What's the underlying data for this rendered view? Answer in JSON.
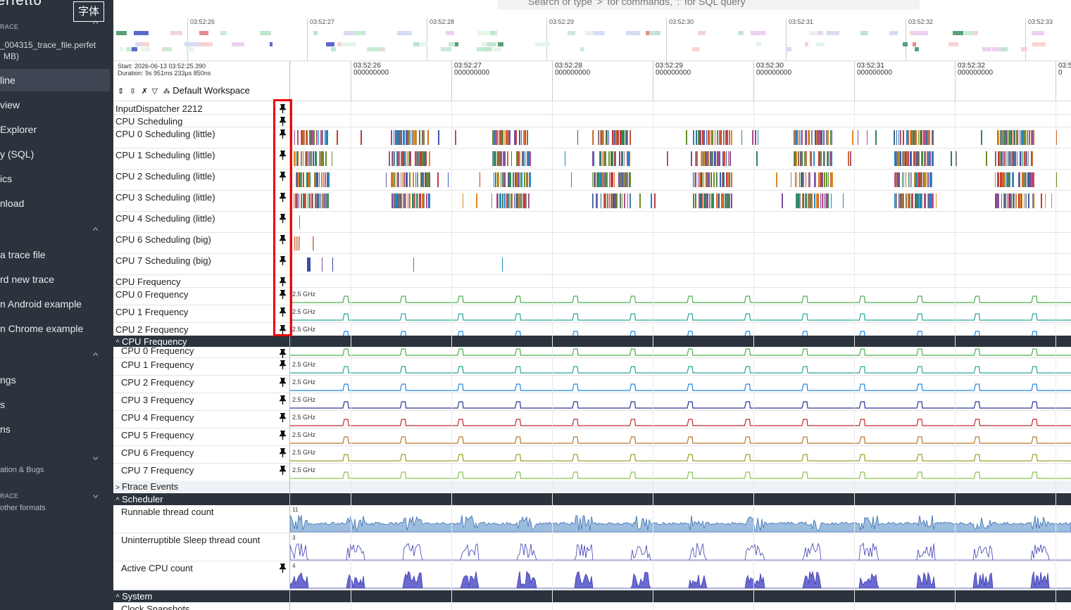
{
  "sidebar": {
    "logo": "erfetto",
    "font_badge": "字体",
    "section1_header": "RACE",
    "trace_name": "_004315_trace_file.perfet",
    "trace_size": "MB)",
    "items": [
      {
        "label": "line"
      },
      {
        "label": "view"
      },
      {
        "label": " Explorer"
      },
      {
        "label": "y (SQL)"
      },
      {
        "label": "ics"
      },
      {
        "label": "nload"
      }
    ],
    "items2": [
      {
        "label": "a trace file"
      },
      {
        "label": "rd new trace"
      },
      {
        "label": "n Android example"
      },
      {
        "label": "n Chrome example"
      }
    ],
    "items3": [
      {
        "label": "ngs"
      },
      {
        "label": "s"
      },
      {
        "label": "ns"
      }
    ],
    "footer1": "ation & Bugs",
    "footer_header": "RACE",
    "footer2": "other formats"
  },
  "search": {
    "text": "Search or type '>' for commands, ':' for SQL query"
  },
  "overview_ticks": [
    "03:52:26",
    "03:52:27",
    "03:52:28",
    "03:52:29",
    "03:52:30",
    "03:52:31",
    "03:52:32",
    "03:52:33"
  ],
  "timeline": {
    "start": "Start: 2026-06-13 03:52:25.390",
    "duration": "Duration: 9s 951ms 233µs 850ns",
    "workspace": "Default Workspace",
    "ticks": [
      {
        "time": "03:52:26",
        "sub": "000000000"
      },
      {
        "time": "03:52:27",
        "sub": "000000000"
      },
      {
        "time": "03:52:28",
        "sub": "000000000"
      },
      {
        "time": "03:52:29",
        "sub": "000000000"
      },
      {
        "time": "03:52:30",
        "sub": "000000000"
      },
      {
        "time": "03:52:31",
        "sub": "000000000"
      },
      {
        "time": "03:52:32",
        "sub": "000000000"
      },
      {
        "time": "03:5",
        "sub": "0"
      }
    ]
  },
  "pinned_tracks": [
    {
      "name": "InputDispatcher 2212"
    },
    {
      "name": "CPU Scheduling"
    },
    {
      "name": "CPU 0 Scheduling (little)"
    },
    {
      "name": "CPU 1 Scheduling (little)"
    },
    {
      "name": "CPU 2 Scheduling (little)"
    },
    {
      "name": "CPU 3 Scheduling (little)"
    },
    {
      "name": "CPU 4 Scheduling (little)"
    },
    {
      "name": "CPU 6 Scheduling (big)"
    },
    {
      "name": "CPU 7 Scheduling (big)"
    },
    {
      "name": "CPU Frequency"
    },
    {
      "name": "CPU 0 Frequency",
      "freq": "2.5 GHz"
    },
    {
      "name": "CPU 1 Frequency",
      "freq": "2.5 GHz"
    },
    {
      "name": "CPU 2 Frequency",
      "freq": "2.5 GHz"
    }
  ],
  "groups": {
    "cpu_freq": "CPU Frequency",
    "ftrace": "Ftrace Events",
    "scheduler": "Scheduler",
    "system": "System"
  },
  "freq_tracks": [
    {
      "name": "CPU 0 Frequency",
      "freq": "2.5 GHz",
      "color": "#4caf50"
    },
    {
      "name": "CPU 1 Frequency",
      "freq": "2.5 GHz",
      "color": "#26a69a"
    },
    {
      "name": "CPU 2 Frequency",
      "freq": "2.5 GHz",
      "color": "#1e88e5"
    },
    {
      "name": "CPU 3 Frequency",
      "freq": "2.5 GHz",
      "color": "#283593"
    },
    {
      "name": "CPU 4 Frequency",
      "freq": "2.5 GHz",
      "color": "#c62828"
    },
    {
      "name": "CPU 5 Frequency",
      "freq": "2.5 GHz",
      "color": "#b8762f"
    },
    {
      "name": "CPU 6 Frequency",
      "freq": "2.5 GHz",
      "color": "#9e9d24"
    },
    {
      "name": "CPU 7 Frequency",
      "freq": "2.5 GHz",
      "color": "#8bc34a"
    }
  ],
  "sched_tracks": [
    {
      "name": "Runnable thread count",
      "max": "11"
    },
    {
      "name": "Uninterruptible Sleep thread count",
      "max": "3"
    },
    {
      "name": "Active CPU count",
      "max": "4"
    }
  ],
  "system_first": "Clock Snapshots"
}
